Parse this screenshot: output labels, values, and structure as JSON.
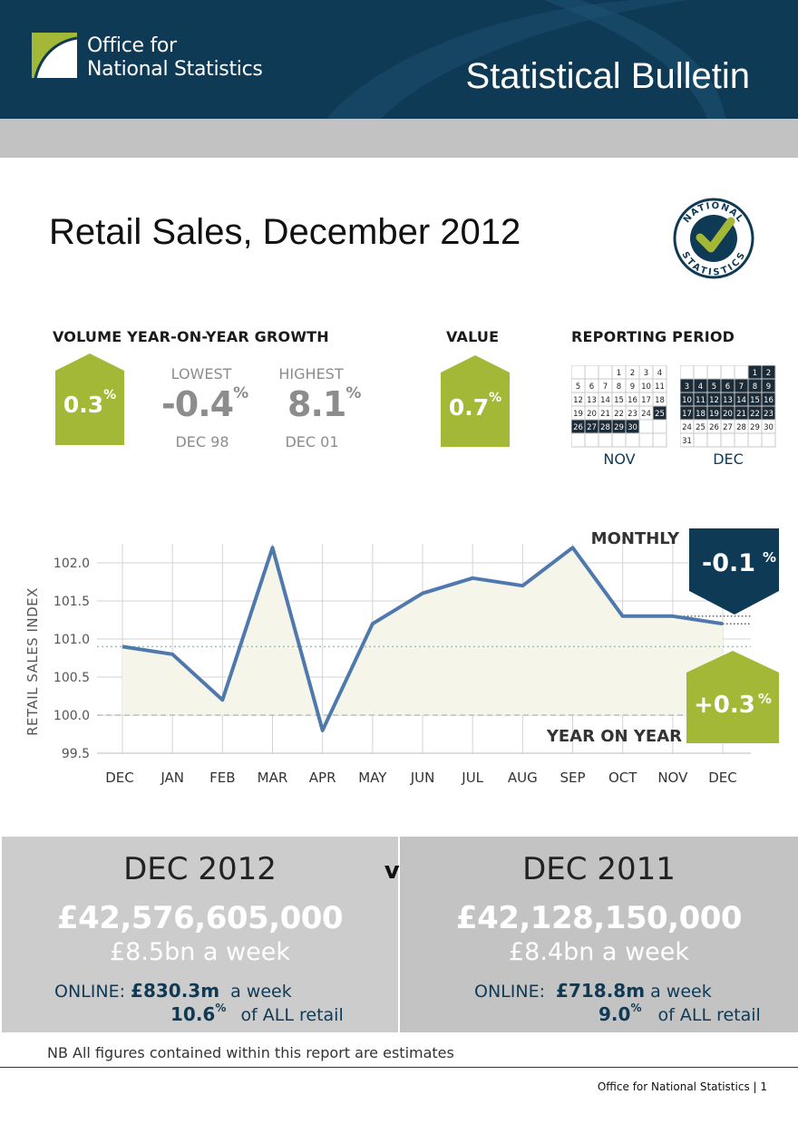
{
  "header": {
    "org_line1": "Office for",
    "org_line2": "National Statistics",
    "bulletin_title": "Statistical Bulletin"
  },
  "report_title": "Retail Sales, December 2012",
  "badge_text": "NATIONAL STATISTICS",
  "volume": {
    "label": "VOLUME YEAR-ON-YEAR GROWTH",
    "current": "0.3",
    "current_unit": "%",
    "lowest_label": "LOWEST",
    "lowest_value": "-0.4",
    "lowest_unit": "%",
    "lowest_date": "DEC 98",
    "highest_label": "HIGHEST",
    "highest_value": "8.1",
    "highest_unit": "%",
    "highest_date": "DEC 01"
  },
  "value": {
    "label": "VALUE",
    "current": "0.7",
    "current_unit": "%"
  },
  "reporting_period": {
    "label": "REPORTING PERIOD",
    "nov_label": "NOV",
    "dec_label": "DEC",
    "nov_rows": [
      [
        "",
        "",
        "",
        "1",
        "2",
        "3",
        "4"
      ],
      [
        "5",
        "6",
        "7",
        "8",
        "9",
        "10",
        "11"
      ],
      [
        "12",
        "13",
        "14",
        "15",
        "16",
        "17",
        "18"
      ],
      [
        "19",
        "20",
        "21",
        "22",
        "23",
        "24",
        "25"
      ],
      [
        "26",
        "27",
        "28",
        "29",
        "30",
        "",
        ""
      ],
      [
        "",
        "",
        "",
        "",
        "",
        "",
        ""
      ]
    ],
    "nov_dark": [
      "25",
      "26",
      "27",
      "28",
      "29",
      "30"
    ],
    "dec_rows": [
      [
        "",
        "",
        "",
        "",
        "",
        "1",
        "2"
      ],
      [
        "3",
        "4",
        "5",
        "6",
        "7",
        "8",
        "9"
      ],
      [
        "10",
        "11",
        "12",
        "13",
        "14",
        "15",
        "16"
      ],
      [
        "17",
        "18",
        "19",
        "20",
        "21",
        "22",
        "23"
      ],
      [
        "24",
        "25",
        "26",
        "27",
        "28",
        "29",
        "30"
      ],
      [
        "31",
        "",
        "",
        "",
        "",
        "",
        ""
      ]
    ],
    "dec_dark": [
      "1",
      "2",
      "3",
      "4",
      "5",
      "6",
      "7",
      "8",
      "9",
      "10",
      "11",
      "12",
      "13",
      "14",
      "15",
      "16",
      "17",
      "18",
      "19",
      "20",
      "21",
      "22",
      "23"
    ]
  },
  "chart_data": {
    "type": "line",
    "ylabel": "RETAIL SALES INDEX",
    "categories": [
      "DEC",
      "JAN",
      "FEB",
      "MAR",
      "APR",
      "MAY",
      "JUN",
      "JUL",
      "AUG",
      "SEP",
      "OCT",
      "NOV",
      "DEC"
    ],
    "values": [
      100.9,
      100.8,
      100.2,
      102.2,
      99.8,
      101.2,
      101.6,
      101.8,
      101.7,
      102.2,
      101.3,
      101.3,
      101.2
    ],
    "ylim": [
      99.5,
      102.25
    ],
    "yticks": [
      "99.5",
      "100.0",
      "100.5",
      "101.0",
      "101.5",
      "102.0"
    ],
    "ytick_values": [
      99.5,
      100.0,
      100.5,
      101.0,
      101.5,
      102.0
    ],
    "grid": true,
    "series_color": "#4f79ad",
    "fill_color": "#f6f5e9",
    "monthly_label": "MONTHLY",
    "monthly_value": "-0.1",
    "monthly_unit": "%",
    "yoy_label": "YEAR ON YEAR",
    "yoy_value": "+0.3",
    "yoy_unit": "%"
  },
  "comparison": {
    "vs": "vs",
    "left": {
      "period": "DEC 2012",
      "total": "£42,576,605,000",
      "weekly": "£8.5bn a week",
      "online_label": "ONLINE:",
      "online_value": "£830.3m",
      "online_suffix": "a week",
      "share_value": "10.6",
      "share_unit": "%",
      "share_suffix": "of ALL retail"
    },
    "right": {
      "period": "DEC 2011",
      "total": "£42,128,150,000",
      "weekly": "£8.4bn a week",
      "online_label": "ONLINE:",
      "online_value": "£718.8m",
      "online_suffix": "a week",
      "share_value": "9.0",
      "share_unit": "%",
      "share_suffix": "of ALL retail"
    }
  },
  "note": "NB All figures contained within this report are estimates",
  "footer": "Office for National Statistics | 1",
  "colors": {
    "navy": "#0f3a56",
    "green": "#a3b836",
    "grey_text": "#8c8c8c"
  }
}
